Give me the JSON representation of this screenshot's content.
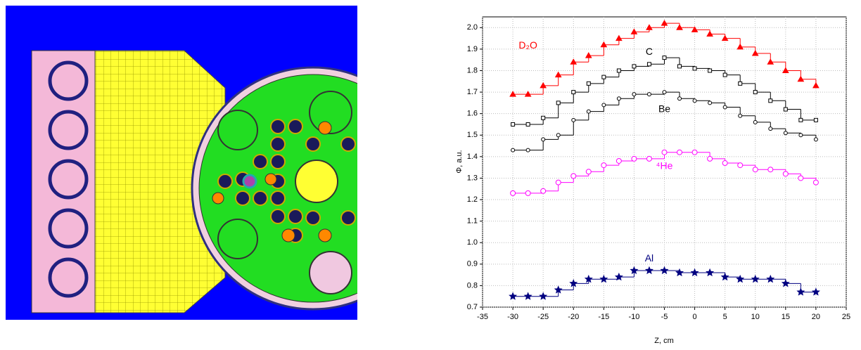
{
  "chart_data": {
    "type": "step",
    "x_label": "Z, cm",
    "y_label": "Φ, a.u.",
    "xlim": [
      -35,
      25
    ],
    "xticks": [
      -35,
      -30,
      -25,
      -20,
      -15,
      -10,
      -5,
      0,
      5,
      10,
      15,
      20,
      25
    ],
    "ylim": [
      0.7,
      2.05
    ],
    "yticks": [
      0.7,
      0.8,
      0.9,
      {
        "value": 1,
        "label": "1.0"
      },
      1.1,
      1.2,
      1.3,
      1.4,
      1.5,
      1.6,
      1.7,
      1.8,
      1.9,
      {
        "value": 2,
        "label": "2.0"
      }
    ],
    "grid": true,
    "x": [
      -30,
      -27.5,
      -25,
      -22.5,
      -20,
      -17.5,
      -15,
      -12.5,
      -10,
      -7.5,
      -5,
      -2.5,
      0,
      2.5,
      5,
      7.5,
      10,
      12.5,
      15,
      17.5,
      20
    ],
    "series": [
      {
        "name": "D₂O",
        "color": "#ff0000",
        "marker": "triangle",
        "values": [
          1.69,
          1.69,
          1.73,
          1.78,
          1.84,
          1.87,
          1.92,
          1.95,
          1.98,
          2.0,
          2.02,
          2.0,
          1.99,
          1.97,
          1.95,
          1.91,
          1.88,
          1.84,
          1.8,
          1.76,
          1.73
        ]
      },
      {
        "name": "C",
        "color": "#000000",
        "marker": "square",
        "values": [
          1.55,
          1.55,
          1.58,
          1.65,
          1.7,
          1.74,
          1.77,
          1.8,
          1.82,
          1.83,
          1.86,
          1.82,
          1.81,
          1.8,
          1.78,
          1.74,
          1.7,
          1.66,
          1.62,
          1.57,
          1.57
        ]
      },
      {
        "name": "Be",
        "color": "#000000",
        "marker": "circle",
        "values": [
          1.43,
          1.43,
          1.48,
          1.5,
          1.57,
          1.61,
          1.64,
          1.67,
          1.69,
          1.69,
          1.7,
          1.67,
          1.66,
          1.65,
          1.63,
          1.59,
          1.56,
          1.53,
          1.51,
          1.5,
          1.48
        ]
      },
      {
        "name": "⁴He",
        "color": "#ff00ff",
        "marker": "circle",
        "values": [
          1.23,
          1.23,
          1.24,
          1.28,
          1.31,
          1.33,
          1.36,
          1.38,
          1.39,
          1.39,
          1.42,
          1.42,
          1.42,
          1.39,
          1.37,
          1.36,
          1.34,
          1.34,
          1.32,
          1.3,
          1.28
        ]
      },
      {
        "name": "Al",
        "color": "#000080",
        "marker": "star",
        "values": [
          0.75,
          0.75,
          0.75,
          0.78,
          0.81,
          0.83,
          0.83,
          0.84,
          0.87,
          0.87,
          0.87,
          0.86,
          0.86,
          0.86,
          0.84,
          0.83,
          0.83,
          0.83,
          0.81,
          0.77,
          0.77
        ]
      }
    ]
  }
}
